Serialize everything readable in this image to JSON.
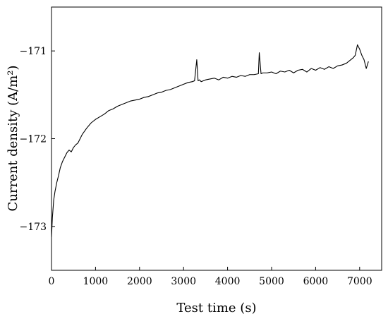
{
  "chart_data": {
    "type": "line",
    "title": "",
    "xlabel": "Test time (s)",
    "ylabel": "Current density (A/m²)",
    "xlim": [
      0,
      7500
    ],
    "ylim": [
      -173.5,
      -170.5
    ],
    "x_ticks": [
      0,
      1000,
      2000,
      3000,
      4000,
      5000,
      6000,
      7000
    ],
    "x_tick_labels": [
      "0",
      "1000",
      "2000",
      "3000",
      "4000",
      "5000",
      "6000",
      "7000"
    ],
    "y_ticks": [
      -173,
      -172,
      -171
    ],
    "y_tick_labels": [
      "−173",
      "−172",
      "−171"
    ],
    "grid": false,
    "line_color": "#000000",
    "series": [
      {
        "x": [
          0,
          20,
          50,
          80,
          120,
          160,
          200,
          250,
          300,
          350,
          400,
          450,
          500,
          550,
          600,
          650,
          700,
          800,
          900,
          1000,
          1100,
          1200,
          1300,
          1400,
          1500,
          1600,
          1700,
          1800,
          1900,
          2000,
          2100,
          2200,
          2300,
          2400,
          2500,
          2600,
          2700,
          2800,
          2900,
          3000,
          3100,
          3200,
          3250,
          3300,
          3330,
          3360,
          3400,
          3500,
          3600,
          3700,
          3800,
          3900,
          4000,
          4100,
          4200,
          4300,
          4400,
          4500,
          4600,
          4700,
          4720,
          4760,
          4800,
          4900,
          5000,
          5100,
          5200,
          5300,
          5400,
          5500,
          5600,
          5700,
          5800,
          5900,
          6000,
          6100,
          6200,
          6300,
          6400,
          6500,
          6600,
          6700,
          6800,
          6850,
          6900,
          6950,
          7000,
          7050,
          7100,
          7150,
          7200
        ],
        "y": [
          -173.12,
          -172.9,
          -172.7,
          -172.6,
          -172.5,
          -172.42,
          -172.33,
          -172.26,
          -172.21,
          -172.16,
          -172.13,
          -172.15,
          -172.1,
          -172.07,
          -172.05,
          -172.0,
          -171.95,
          -171.88,
          -171.82,
          -171.78,
          -171.75,
          -171.72,
          -171.68,
          -171.66,
          -171.63,
          -171.61,
          -171.59,
          -171.57,
          -171.56,
          -171.55,
          -171.53,
          -171.52,
          -171.5,
          -171.48,
          -171.47,
          -171.45,
          -171.44,
          -171.42,
          -171.4,
          -171.38,
          -171.36,
          -171.35,
          -171.34,
          -171.1,
          -171.34,
          -171.33,
          -171.35,
          -171.33,
          -171.32,
          -171.31,
          -171.33,
          -171.3,
          -171.31,
          -171.29,
          -171.3,
          -171.28,
          -171.29,
          -171.27,
          -171.27,
          -171.26,
          -171.02,
          -171.26,
          -171.25,
          -171.25,
          -171.24,
          -171.26,
          -171.23,
          -171.24,
          -171.22,
          -171.25,
          -171.22,
          -171.21,
          -171.24,
          -171.2,
          -171.22,
          -171.19,
          -171.21,
          -171.18,
          -171.2,
          -171.17,
          -171.16,
          -171.14,
          -171.1,
          -171.08,
          -171.05,
          -170.93,
          -170.98,
          -171.05,
          -171.1,
          -171.2,
          -171.12
        ]
      }
    ]
  }
}
